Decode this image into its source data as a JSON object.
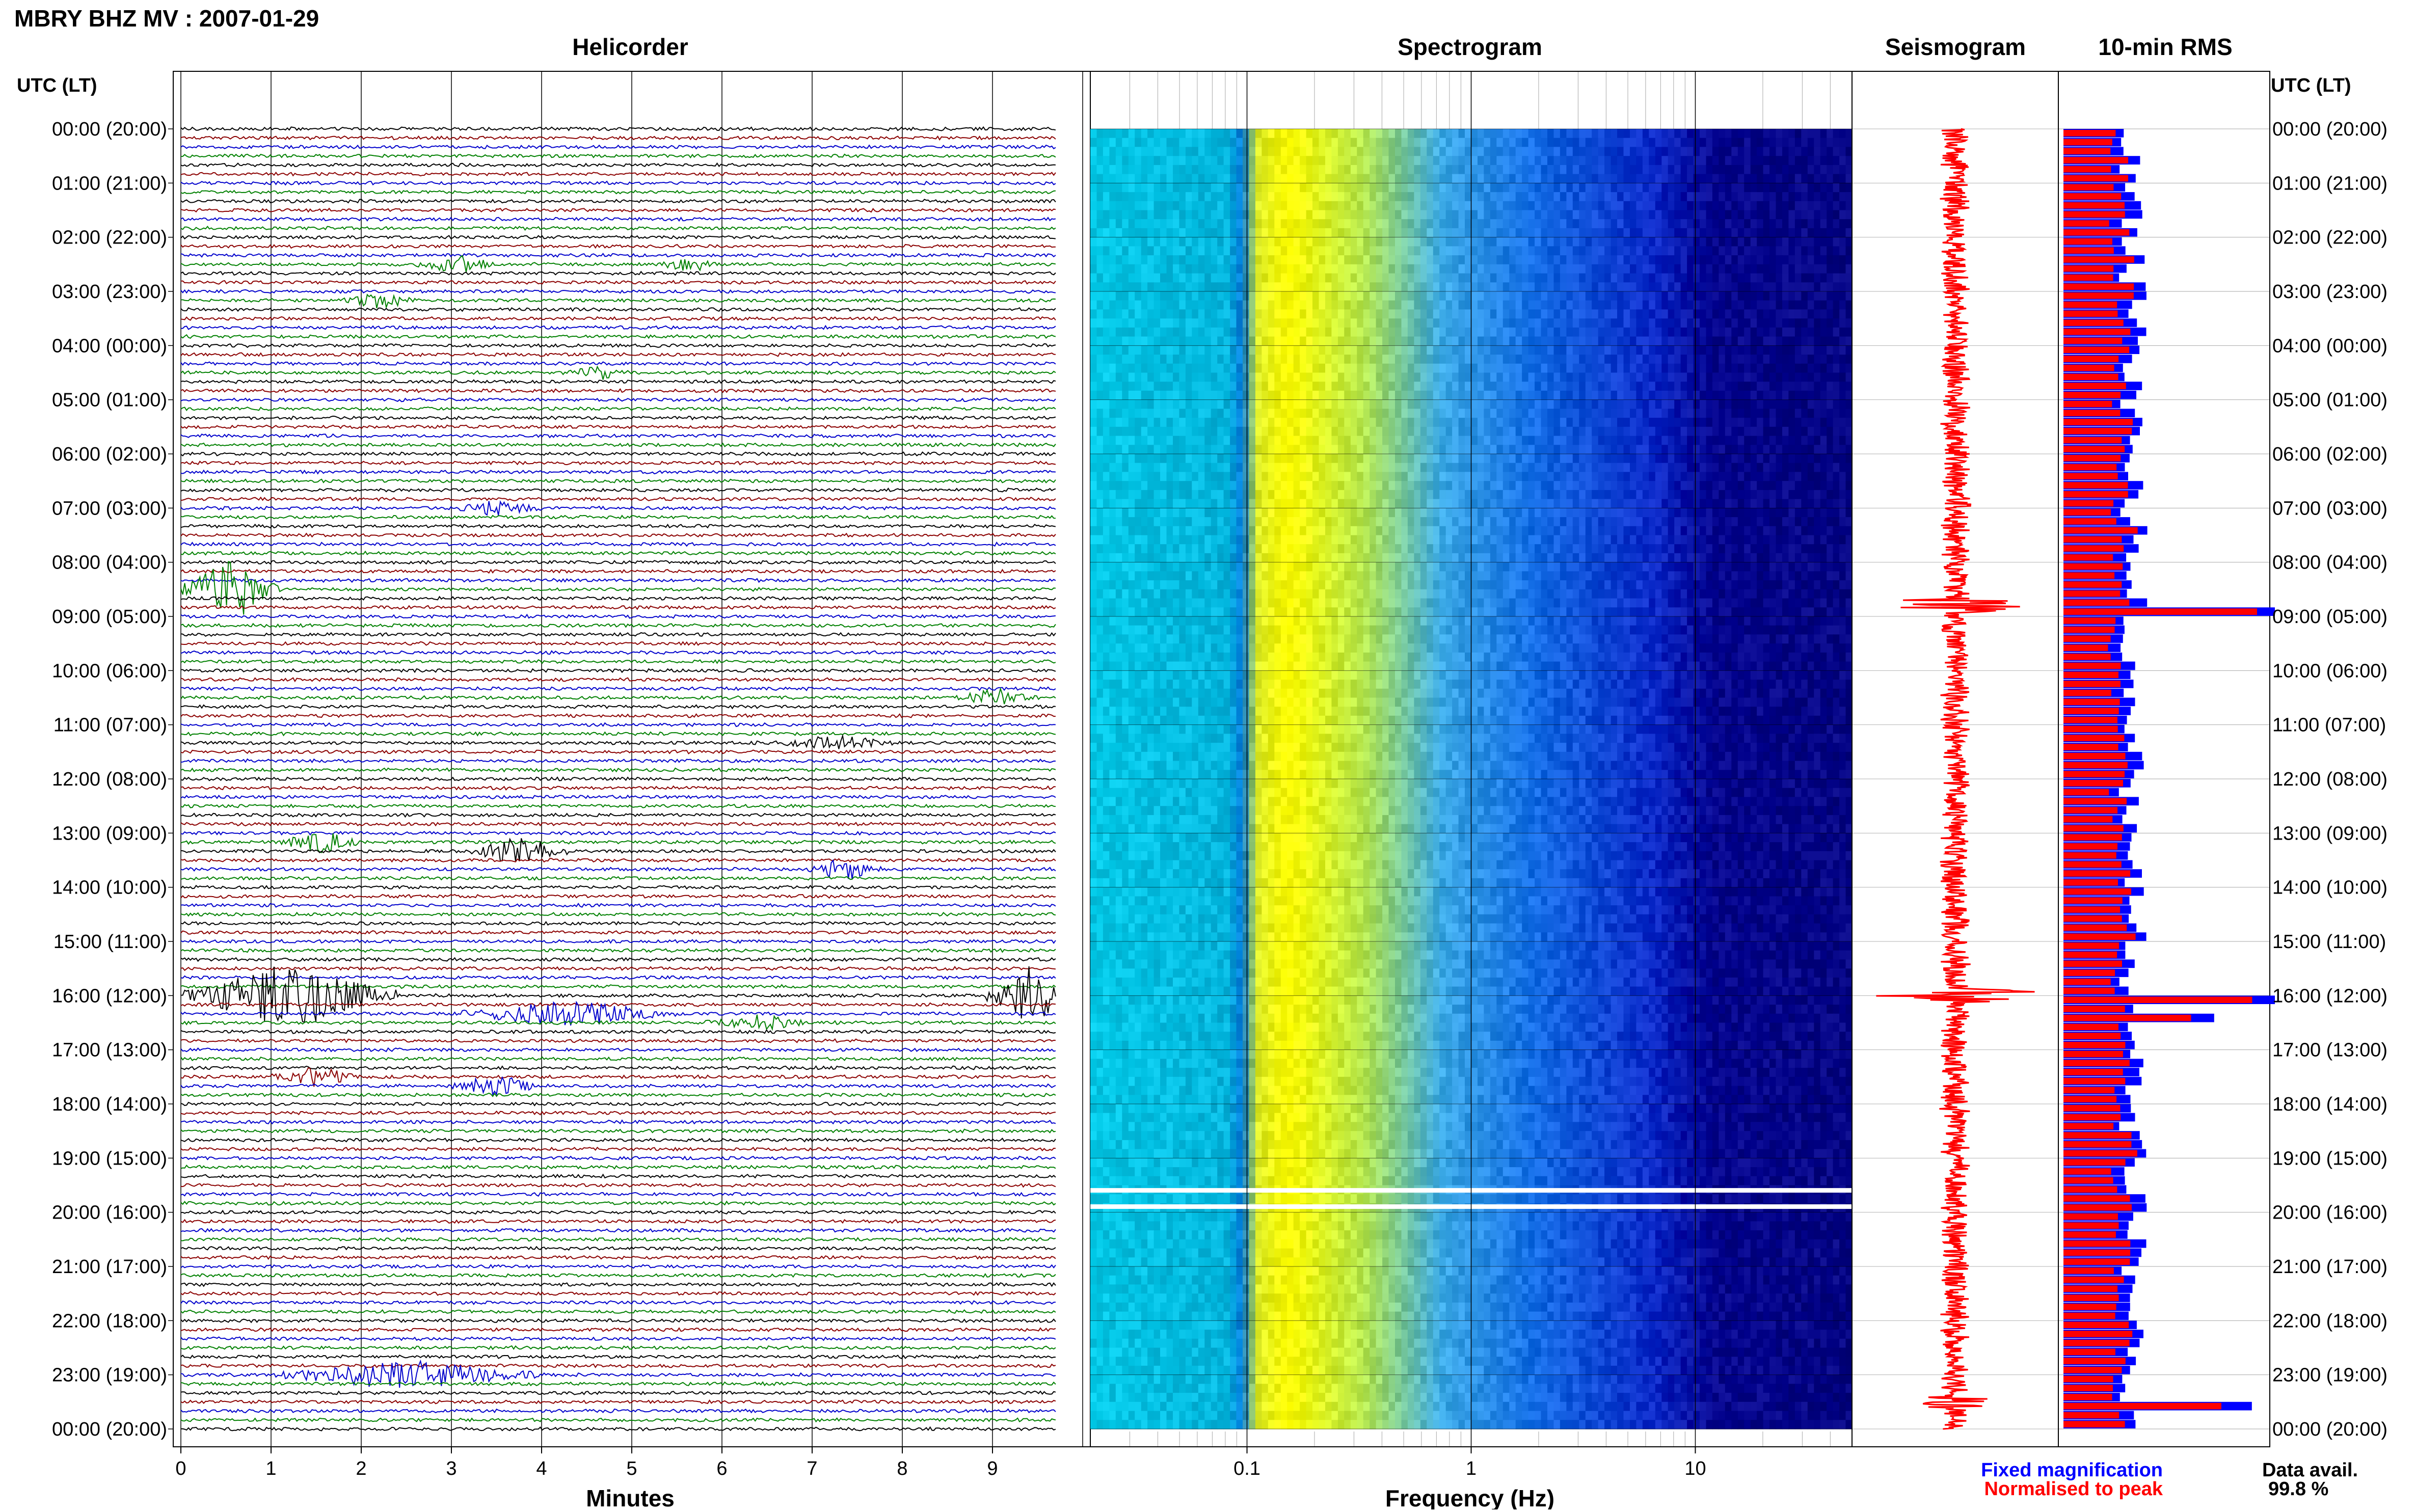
{
  "header": {
    "station_title": "MBRY BHZ MV : 2007-01-29",
    "utc_label": "UTC (LT)",
    "utc_label_right": "UTC (LT)"
  },
  "panels": {
    "helicorder": "Helicorder",
    "spectrogram": "Spectrogram",
    "seismogram": "Seismogram",
    "rms": "10-min RMS"
  },
  "axes": {
    "minutes_label": "Minutes",
    "frequency_label": "Frequency (Hz)",
    "minute_ticks": [
      "0",
      "1",
      "2",
      "3",
      "4",
      "5",
      "6",
      "7",
      "8",
      "9"
    ],
    "frequency_ticks": [
      "0.1",
      "1",
      "10"
    ]
  },
  "time_labels": [
    "00:00 (20:00)",
    "01:00 (21:00)",
    "02:00 (22:00)",
    "03:00 (23:00)",
    "04:00 (00:00)",
    "05:00 (01:00)",
    "06:00 (02:00)",
    "07:00 (03:00)",
    "08:00 (04:00)",
    "09:00 (05:00)",
    "10:00 (06:00)",
    "11:00 (07:00)",
    "12:00 (08:00)",
    "13:00 (09:00)",
    "14:00 (10:00)",
    "15:00 (11:00)",
    "16:00 (12:00)",
    "17:00 (13:00)",
    "18:00 (14:00)",
    "19:00 (15:00)",
    "20:00 (16:00)",
    "21:00 (17:00)",
    "22:00 (18:00)",
    "23:00 (19:00)",
    "00:00 (20:00)"
  ],
  "legend": {
    "fixed": "Fixed magnification",
    "normalised": "Normalised to peak",
    "data_avail_label": "Data avail.",
    "data_avail_value": "99.8 %"
  },
  "colors": {
    "trace_cycle": [
      "#000000",
      "#8b0000",
      "#0000cc",
      "#008000"
    ],
    "rms_fixed": "#0000ff",
    "rms_normalised": "#ff0000",
    "seismogram": "#ff0000"
  },
  "chart_data": {
    "type": "heatmap",
    "title": "MBRY BHZ MV : 2007-01-29",
    "helicorder": {
      "minutes_per_line": 10,
      "lines": 144,
      "x_range": [
        0,
        10
      ],
      "events": [
        {
          "line": 15,
          "start": 2.6,
          "end": 3.5,
          "amp": 1.2
        },
        {
          "line": 15,
          "start": 5.3,
          "end": 6.0,
          "amp": 1.0
        },
        {
          "line": 19,
          "start": 1.8,
          "end": 2.6,
          "amp": 1.0
        },
        {
          "line": 27,
          "start": 4.3,
          "end": 5.0,
          "amp": 1.0
        },
        {
          "line": 42,
          "start": 3.0,
          "end": 4.0,
          "amp": 1.0
        },
        {
          "line": 51,
          "start": 0.0,
          "end": 1.1,
          "amp": 4.5
        },
        {
          "line": 63,
          "start": 8.6,
          "end": 9.5,
          "amp": 1.2
        },
        {
          "line": 68,
          "start": 6.6,
          "end": 8.0,
          "amp": 1.0
        },
        {
          "line": 79,
          "start": 1.1,
          "end": 2.0,
          "amp": 1.5
        },
        {
          "line": 80,
          "start": 3.2,
          "end": 4.3,
          "amp": 2.0
        },
        {
          "line": 82,
          "start": 6.9,
          "end": 7.8,
          "amp": 1.5
        },
        {
          "line": 96,
          "start": 0.0,
          "end": 2.4,
          "amp": 4.5
        },
        {
          "line": 96,
          "start": 8.9,
          "end": 10.0,
          "amp": 4.5
        },
        {
          "line": 98,
          "start": 3.1,
          "end": 5.5,
          "amp": 1.8
        },
        {
          "line": 99,
          "start": 5.8,
          "end": 7.0,
          "amp": 1.0
        },
        {
          "line": 105,
          "start": 1.0,
          "end": 2.0,
          "amp": 1.3
        },
        {
          "line": 106,
          "start": 3.0,
          "end": 4.0,
          "amp": 1.4
        },
        {
          "line": 138,
          "start": 1.0,
          "end": 4.0,
          "amp": 2.0
        }
      ]
    },
    "spectrogram": {
      "frequency_range_hz": [
        0.02,
        50
      ],
      "x_scale": "log",
      "gaps_hours": [
        19.6,
        19.9
      ]
    },
    "rms_10min": {
      "bins": 144,
      "fixed_magnification_range": [
        0,
        1
      ],
      "normalised_peak_hour": 16.0
    }
  }
}
